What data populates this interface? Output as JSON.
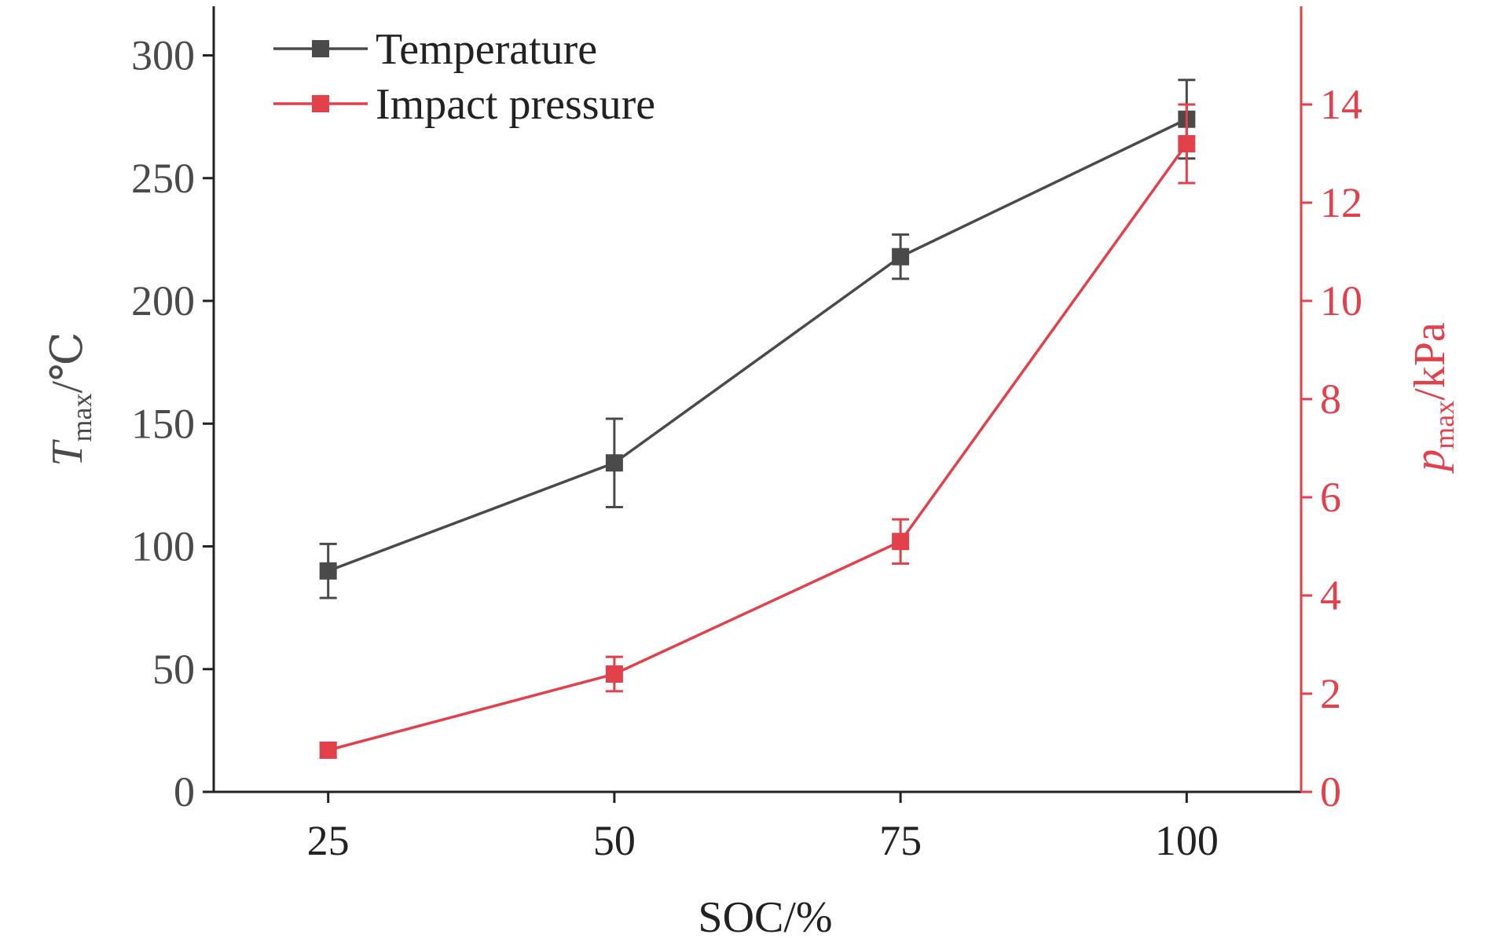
{
  "colors": {
    "axis": "#222222",
    "temperature": "#4a4a4a",
    "pressure": "#e2404a"
  },
  "chart_data": {
    "type": "line",
    "x_label": "SOC/%",
    "y_label": {
      "main": "T",
      "sub": "max",
      "unit": "/℃"
    },
    "y2_label": {
      "main": "p",
      "sub": "max",
      "unit": "/kPa"
    },
    "x_categories": [
      "25",
      "50",
      "75",
      "100"
    ],
    "x_values": [
      25,
      50,
      75,
      100
    ],
    "x_range": [
      15,
      110
    ],
    "y_range": [
      0,
      320
    ],
    "y_ticks": [
      "0",
      "50",
      "100",
      "150",
      "200",
      "250",
      "300"
    ],
    "y2_range": [
      0,
      16
    ],
    "y2_ticks": [
      "0",
      "2",
      "4",
      "6",
      "8",
      "10",
      "12",
      "14"
    ],
    "legend_position": "top-left",
    "grid": false,
    "series": [
      {
        "name": "Temperature",
        "axis": "left",
        "values": [
          90,
          134,
          218,
          274
        ],
        "errors": [
          11,
          18,
          9,
          16
        ]
      },
      {
        "name": "Impact pressure",
        "axis": "right",
        "values": [
          0.85,
          2.4,
          5.1,
          13.2
        ],
        "errors": [
          0.15,
          0.35,
          0.45,
          0.8
        ]
      }
    ]
  }
}
